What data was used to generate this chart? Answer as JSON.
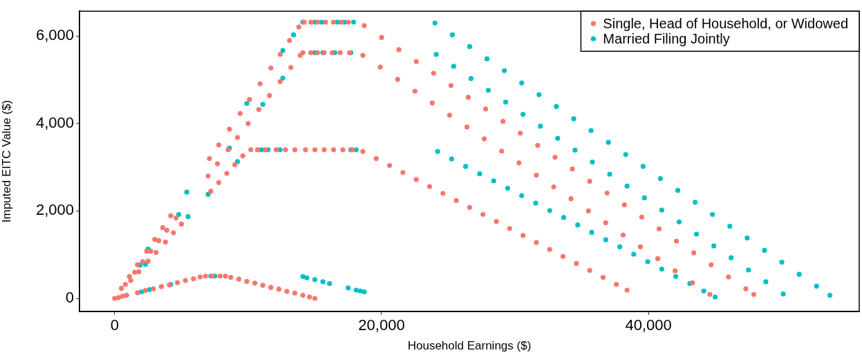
{
  "chart_data": {
    "type": "scatter",
    "xlabel": "Household Earnings ($)",
    "ylabel": "Imputed EITC Value ($)",
    "xlim": [
      -2640,
      55800
    ],
    "ylim": [
      -300,
      6570
    ],
    "xticks": [
      {
        "value": 0,
        "label": "0"
      },
      {
        "value": 20000,
        "label": "20,000"
      },
      {
        "value": 40000,
        "label": "40,000"
      }
    ],
    "yticks": [
      {
        "value": 0,
        "label": "0"
      },
      {
        "value": 2000,
        "label": "2,000"
      },
      {
        "value": 4000,
        "label": "4,000"
      },
      {
        "value": 6000,
        "label": "6,000"
      }
    ],
    "grid": false,
    "legend": "top right",
    "marker": "circle",
    "series": [
      {
        "name": "Single, Head of Household, or Widowed",
        "color": "#f8766d",
        "x": [
          0,
          300,
          600,
          900,
          1700,
          2300,
          2900,
          3500,
          4100,
          4700,
          5300,
          5900,
          6400,
          6800,
          7300,
          7900,
          8300,
          8700,
          9300,
          9900,
          10500,
          11100,
          11700,
          12300,
          12900,
          13500,
          14100,
          14600,
          15000,
          1200,
          1800,
          2500,
          3100,
          3800,
          4400,
          5000,
          7200,
          7800,
          8400,
          9000,
          9600,
          800,
          1500,
          2100,
          2700,
          3300,
          3900,
          4600,
          7000,
          7700,
          8500,
          9200,
          10000,
          10800,
          11600,
          12400,
          13200,
          13900,
          500,
          1100,
          1700,
          2400,
          3000,
          3600,
          4200,
          7100,
          7800,
          8600,
          9400,
          10100,
          10900,
          11700,
          12400,
          13100,
          13800,
          10200,
          10700,
          11300,
          12100,
          12800,
          13500,
          14300,
          15000,
          15700,
          16400,
          17100,
          17800,
          14100,
          14700,
          15200,
          15700,
          16300,
          16900,
          17600,
          14200,
          14700,
          15200,
          15800,
          16400,
          17000,
          17500,
          18600,
          19600,
          20600,
          21600,
          22600,
          23600,
          24600,
          25600,
          26600,
          27600,
          28600,
          29600,
          30600,
          31600,
          32600,
          33600,
          34600,
          35600,
          36600,
          37600,
          38400,
          18600,
          19900,
          21200,
          22500,
          23800,
          25100,
          26400,
          27700,
          29000,
          30300,
          31600,
          32900,
          34200,
          35500,
          36800,
          38100,
          39400,
          40700,
          42000,
          43300,
          44600,
          18700,
          20000,
          21300,
          22600,
          23900,
          25200,
          26500,
          27800,
          29100,
          30400,
          31700,
          33000,
          34300,
          35600,
          36900,
          38200,
          39500,
          40800,
          42100,
          43400,
          44700,
          46000,
          47300,
          47900
        ],
        "values": [
          0,
          20,
          50,
          70,
          130,
          180,
          220,
          270,
          310,
          360,
          410,
          450,
          490,
          510,
          510,
          510,
          510,
          480,
          440,
          390,
          350,
          300,
          250,
          210,
          160,
          120,
          70,
          30,
          0,
          410,
          610,
          850,
          1050,
          1290,
          1500,
          1700,
          2450,
          2650,
          2860,
          3060,
          3260,
          320,
          600,
          840,
          1080,
          1320,
          1560,
          1840,
          2800,
          3080,
          3400,
          3680,
          4000,
          4320,
          4640,
          4960,
          5280,
          5560,
          230,
          500,
          770,
          1080,
          1350,
          1620,
          1890,
          3200,
          3510,
          3870,
          4230,
          4550,
          4910,
          5270,
          5580,
          5900,
          6210,
          3400,
          3400,
          3400,
          3400,
          3400,
          3400,
          3400,
          3400,
          3400,
          3400,
          3400,
          3400,
          5620,
          5620,
          5620,
          5620,
          5620,
          5620,
          5620,
          6320,
          6320,
          6320,
          6320,
          6320,
          6320,
          6320,
          3360,
          3200,
          3040,
          2880,
          2720,
          2560,
          2400,
          2240,
          2080,
          1920,
          1760,
          1600,
          1440,
          1280,
          1120,
          960,
          800,
          640,
          480,
          320,
          190,
          5560,
          5290,
          5010,
          4740,
          4470,
          4190,
          3920,
          3650,
          3370,
          3100,
          2820,
          2550,
          2280,
          2000,
          1730,
          1450,
          1180,
          910,
          630,
          360,
          90,
          6240,
          5970,
          5690,
          5420,
          5150,
          4870,
          4600,
          4330,
          4050,
          3780,
          3500,
          3230,
          2960,
          2680,
          2410,
          2140,
          1860,
          1590,
          1310,
          1040,
          770,
          490,
          220,
          90
        ]
      },
      {
        "name": "Married Filing Jointly",
        "color": "#00bfc4",
        "x": [
          2000,
          2600,
          4200,
          7200,
          7500,
          14100,
          14400,
          15000,
          15600,
          16100,
          17500,
          18100,
          18400,
          18700,
          2300,
          5500,
          7000,
          9200,
          1900,
          4800,
          8600,
          11100,
          12600,
          2500,
          5400,
          9900,
          12600,
          13400,
          11000,
          11500,
          12400,
          17700,
          18100,
          15000,
          15600,
          16500,
          17700,
          14100,
          15000,
          15500,
          16700,
          17200,
          17900,
          24200,
          25250,
          26300,
          27350,
          28400,
          29450,
          30500,
          31550,
          32600,
          33650,
          34700,
          35750,
          36800,
          37850,
          38900,
          39950,
          41000,
          42050,
          43100,
          44150,
          45000,
          24100,
          25400,
          26700,
          28000,
          29300,
          30600,
          31900,
          33200,
          34500,
          35800,
          37100,
          38400,
          39700,
          41000,
          42300,
          43600,
          44900,
          46200,
          47500,
          48800,
          50100,
          24000,
          25300,
          26600,
          27900,
          29200,
          30500,
          31800,
          33100,
          34400,
          35700,
          37000,
          38300,
          39600,
          40900,
          42200,
          43500,
          44800,
          46100,
          47400,
          48700,
          50000,
          51300,
          52600,
          53600
        ],
        "values": [
          150,
          200,
          320,
          510,
          510,
          500,
          470,
          430,
          380,
          340,
          240,
          190,
          170,
          150,
          780,
          1870,
          2380,
          3130,
          760,
          1920,
          3440,
          4440,
          5040,
          1130,
          2430,
          4460,
          5670,
          6030,
          3400,
          3400,
          3400,
          3400,
          3400,
          5620,
          5620,
          5620,
          5620,
          6320,
          6320,
          6320,
          6320,
          6320,
          6320,
          3360,
          3190,
          3020,
          2850,
          2690,
          2520,
          2350,
          2180,
          2010,
          1850,
          1680,
          1510,
          1340,
          1180,
          1010,
          840,
          670,
          500,
          340,
          170,
          30,
          5580,
          5310,
          5030,
          4760,
          4490,
          4210,
          3940,
          3660,
          3390,
          3120,
          2840,
          2570,
          2300,
          2020,
          1750,
          1470,
          1200,
          930,
          650,
          380,
          100,
          6300,
          6030,
          5760,
          5480,
          5210,
          4930,
          4660,
          4390,
          4110,
          3840,
          3570,
          3290,
          3020,
          2740,
          2470,
          2200,
          1920,
          1650,
          1380,
          1100,
          830,
          550,
          280,
          70
        ]
      }
    ]
  }
}
